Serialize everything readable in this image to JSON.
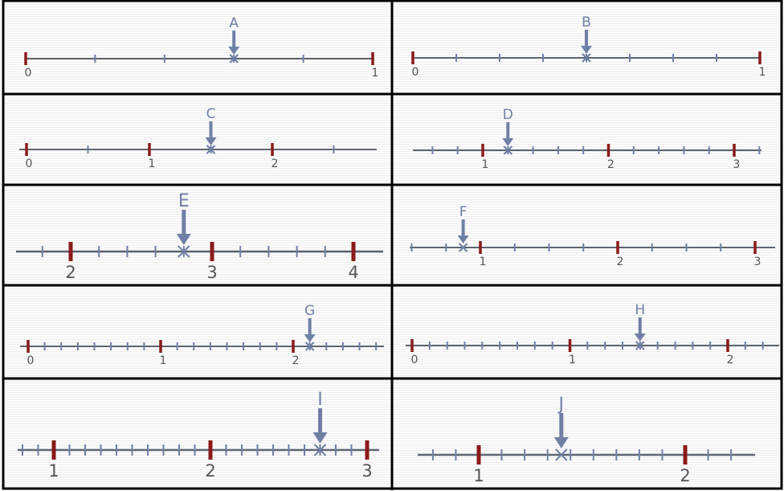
{
  "colors": {
    "line": "#5d6470",
    "major_tick": "#8b1a1a",
    "minor_tick": "#6f7fa6",
    "arrow": "#6f7fa6",
    "label": "#555555",
    "letter": "#6f7fa6",
    "border": "#000000"
  },
  "number_lines": [
    {
      "letter": "A",
      "point": 0.6,
      "major_ticks": [
        {
          "value": 0,
          "label": "0"
        },
        {
          "value": 1,
          "label": "1"
        }
      ]
    },
    {
      "letter": "B",
      "point": 0.5,
      "major_ticks": [
        {
          "value": 0,
          "label": "0"
        },
        {
          "value": 1,
          "label": "1"
        }
      ]
    },
    {
      "letter": "C",
      "point": 1.5,
      "major_ticks": [
        {
          "value": 0,
          "label": "0"
        },
        {
          "value": 1,
          "label": "1"
        },
        {
          "value": 2,
          "label": "2"
        }
      ]
    },
    {
      "letter": "D",
      "point": 1.2,
      "major_ticks": [
        {
          "value": 1,
          "label": "1"
        },
        {
          "value": 2,
          "label": "2"
        },
        {
          "value": 3,
          "label": "3"
        }
      ]
    },
    {
      "letter": "E",
      "point": 2.8,
      "major_ticks": [
        {
          "value": 2,
          "label": "2"
        },
        {
          "value": 3,
          "label": "3"
        },
        {
          "value": 4,
          "label": "4"
        }
      ]
    },
    {
      "letter": "F",
      "point": 0.875,
      "major_ticks": [
        {
          "value": 1,
          "label": "1"
        },
        {
          "value": 2,
          "label": "2"
        },
        {
          "value": 3,
          "label": "3"
        }
      ]
    },
    {
      "letter": "G",
      "point": 2.125,
      "major_ticks": [
        {
          "value": 0,
          "label": "0"
        },
        {
          "value": 1,
          "label": "1"
        },
        {
          "value": 2,
          "label": "2"
        }
      ]
    },
    {
      "letter": "H",
      "point": 1.444,
      "major_ticks": [
        {
          "value": 0,
          "label": "0"
        },
        {
          "value": 1,
          "label": "1"
        },
        {
          "value": 2,
          "label": "2"
        }
      ]
    },
    {
      "letter": "I",
      "point": 2.7,
      "major_ticks": [
        {
          "value": 1,
          "label": "1"
        },
        {
          "value": 2,
          "label": "2"
        },
        {
          "value": 3,
          "label": "3"
        }
      ]
    },
    {
      "letter": "J",
      "point": 1.4,
      "major_ticks": [
        {
          "value": 1,
          "label": "1"
        },
        {
          "value": 2,
          "label": "2"
        }
      ]
    }
  ]
}
